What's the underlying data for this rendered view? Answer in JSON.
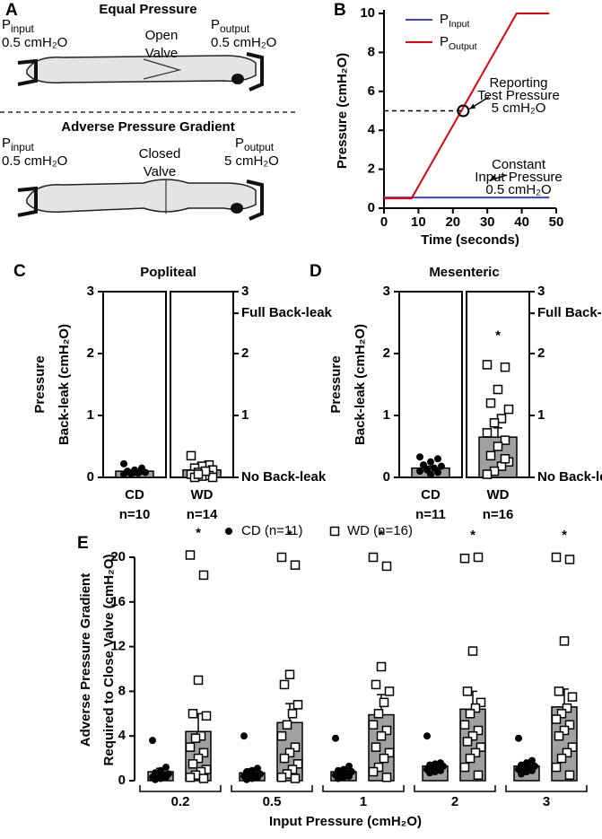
{
  "panel_a": {
    "label": "A",
    "top": {
      "title": "Equal Pressure",
      "input": {
        "symbol": "P",
        "subscript": "input",
        "value": "0.5 cmH₂O"
      },
      "valve": [
        "Open",
        "Valve"
      ],
      "output": {
        "symbol": "P",
        "subscript": "output",
        "value": "0.5 cmH₂O"
      }
    },
    "bottom": {
      "title": "Adverse Pressure Gradient",
      "input": {
        "symbol": "P",
        "subscript": "input",
        "value": "0.5 cmH₂O"
      },
      "valve": [
        "Closed",
        "Valve"
      ],
      "output": {
        "symbol": "P",
        "subscript": "output",
        "value": "5 cmH₂O"
      }
    }
  },
  "chart_data": [
    {
      "type": "line",
      "label": "B",
      "x": [
        0,
        8,
        38.5,
        48
      ],
      "series": [
        {
          "name": "P",
          "subscript": "Input",
          "color": "#3b3bff",
          "values": [
            0.55,
            0.55,
            0.55,
            0.55
          ]
        },
        {
          "name": "P",
          "subscript": "Output",
          "color": "#e8000b",
          "values": [
            0.5,
            0.5,
            10,
            10
          ]
        }
      ],
      "xlabel": "Time (seconds)",
      "ylabel": "Pressure (cmH₂O)",
      "xlim": [
        0,
        50
      ],
      "ylim": [
        0,
        10
      ],
      "xticks": [
        0,
        10,
        20,
        30,
        40,
        50
      ],
      "yticks": [
        0,
        2,
        4,
        6,
        8,
        10
      ],
      "reference": {
        "x": 23,
        "y": 5
      },
      "annotations": [
        {
          "lines": [
            "Reporting",
            "Test Pressure",
            "5 cmH₂O"
          ]
        },
        {
          "lines": [
            "Constant",
            "Input Pressure",
            "0.5 cmH₂O"
          ]
        }
      ]
    },
    {
      "type": "dot-bar",
      "label": "C",
      "title": "Popliteal",
      "ylabel": [
        "Pressure",
        "Back-leak (cmH₂O)"
      ],
      "categories": [
        "CD",
        "WD"
      ],
      "n_labels": [
        "n=10",
        "n=14"
      ],
      "values": [
        0.1,
        0.12
      ],
      "errors": [
        0.02,
        0.03
      ],
      "points": [
        [
          0.22,
          0.15,
          0.12,
          0.1,
          0.08,
          0.07,
          0.06,
          0.05,
          0.1,
          0.08
        ],
        [
          0.35,
          0.2,
          0.18,
          0.15,
          0.12,
          0.1,
          0.08,
          0.05,
          0.03,
          0.02,
          0,
          0,
          0.1,
          0.05
        ]
      ],
      "markers": [
        "circle",
        "square"
      ],
      "significance": [
        null,
        null
      ],
      "color": "#a0a0a0",
      "ylim": [
        0,
        3
      ],
      "yticks": [
        0,
        1,
        2,
        3
      ],
      "y2ticks": [
        {
          "value": 0,
          "label": "No Back-leak"
        },
        1,
        2,
        {
          "value": 2.65,
          "label": "Full Back-leak"
        },
        3
      ]
    },
    {
      "type": "dot-bar",
      "label": "D",
      "title": "Mesenteric",
      "ylabel": [
        "Pressure",
        "Back-leak (cmH₂O)"
      ],
      "categories": [
        "CD",
        "WD"
      ],
      "n_labels": [
        "n=11",
        "n=16"
      ],
      "values": [
        0.15,
        0.65
      ],
      "errors": [
        0.03,
        0.15
      ],
      "points": [
        [
          0.33,
          0.3,
          0.25,
          0.2,
          0.18,
          0.15,
          0.12,
          0.1,
          0.08,
          0.05,
          0.2
        ],
        [
          1.82,
          1.78,
          1.42,
          1.2,
          1.1,
          0.95,
          0.88,
          0.72,
          0.6,
          0.5,
          0.35,
          0.25,
          0.18,
          0.1,
          0.05,
          0.3
        ]
      ],
      "markers": [
        "circle",
        "square"
      ],
      "significance": [
        null,
        "*"
      ],
      "color": "#a0a0a0",
      "ylim": [
        0,
        3
      ],
      "yticks": [
        0,
        1,
        2,
        3
      ],
      "y2ticks": [
        {
          "value": 0,
          "label": "No Back-leak"
        },
        1,
        2,
        {
          "value": 2.65,
          "label": "Full Back-leak"
        },
        3
      ]
    },
    {
      "type": "grouped-dot-bar",
      "label": "E",
      "categories": [
        "0.2",
        "0.5",
        "1",
        "2",
        "3"
      ],
      "series": [
        {
          "name": "CD (n=11)",
          "marker": "circle",
          "values": [
            0.8,
            0.7,
            0.8,
            1.3,
            1.3
          ],
          "errors": [
            0.3,
            0.35,
            0.3,
            0.3,
            0.3
          ],
          "points": [
            [
              3.6,
              1.2,
              0.9,
              0.7,
              0.6,
              0.5,
              0.4,
              0.3,
              0.3,
              0.2,
              0.1
            ],
            [
              4,
              1.1,
              0.9,
              0.8,
              0.6,
              0.5,
              0.5,
              0.4,
              0.3,
              0.2,
              0.1
            ],
            [
              3.8,
              1.3,
              1,
              0.9,
              0.8,
              0.7,
              0.6,
              0.5,
              0.4,
              0.3,
              0.2
            ],
            [
              4,
              1.6,
              1.5,
              1.4,
              1.3,
              1.2,
              1.1,
              1,
              0.9,
              0.8,
              0.7
            ],
            [
              3.8,
              1.8,
              1.6,
              1.4,
              1.3,
              1.2,
              1.1,
              1,
              0.9,
              0.8,
              0.6
            ]
          ],
          "significance": [
            null,
            null,
            null,
            null,
            null
          ]
        },
        {
          "name": "WD (n=16)",
          "marker": "square",
          "values": [
            4.4,
            5.2,
            5.9,
            6.4,
            6.6
          ],
          "errors": [
            1.6,
            1.7,
            1.8,
            1.6,
            1.6
          ],
          "points": [
            [
              20.2,
              18.4,
              9,
              6,
              5.8,
              4,
              3.8,
              3,
              2.5,
              2,
              1.5,
              1,
              0.8,
              0.5,
              0.3,
              0.2
            ],
            [
              20,
              19.3,
              9.5,
              8.6,
              6.8,
              6,
              5,
              4,
              3,
              2.5,
              2,
              1.5,
              1,
              0.6,
              0.3,
              0.2
            ],
            [
              20,
              19.2,
              10.2,
              8.6,
              8,
              7,
              6,
              5,
              4.5,
              4,
              3,
              2.5,
              2,
              1.2,
              0.8,
              0.3
            ],
            [
              19.9,
              20,
              11.6,
              8,
              7,
              6.5,
              6,
              5,
              4.5,
              4,
              3.5,
              3,
              2.5,
              2,
              1.2,
              0.5
            ],
            [
              20,
              19.8,
              12.5,
              8,
              7.5,
              6.5,
              6,
              5.5,
              5,
              4.5,
              4,
              3,
              2.5,
              2,
              1.2,
              0.5
            ]
          ],
          "significance": [
            "*",
            "*",
            "*",
            "*",
            "*"
          ]
        }
      ],
      "xlabel": "Input Pressure (cmH₂O)",
      "ylabel": [
        "Adverse Pressure Gradient",
        "Required to Close Valve (cmH₂O)"
      ],
      "ylim": [
        0,
        20
      ],
      "yticks": [
        0,
        4,
        8,
        12,
        16,
        20
      ],
      "color": "#a0a0a0"
    }
  ]
}
